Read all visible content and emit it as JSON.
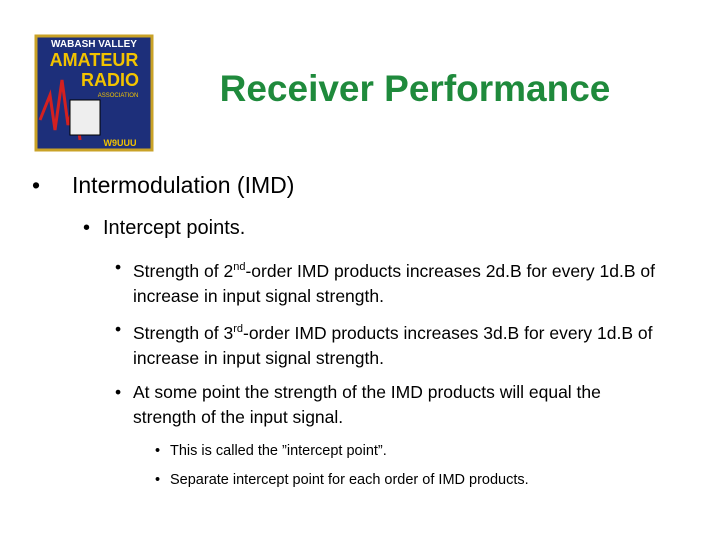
{
  "header": {
    "title": "Receiver Performance",
    "logo": {
      "lines": [
        "WABASH VALLEY",
        "AMATEUR",
        "RADIO",
        "ASSOCIATION"
      ],
      "callsign": "W9UUU"
    }
  },
  "bullets": [
    {
      "text": "Intermodulation (IMD)",
      "children": [
        {
          "text": "Intercept points.",
          "children": [
            {
              "parts": [
                "Strength of 2",
                "nd",
                "-order IMD products increases 2d.B for every 1d.B of increase in input signal strength."
              ]
            },
            {
              "parts": [
                "Strength of 3",
                "rd",
                "-order IMD products increases 3d.B for every 1d.B of increase in input signal strength."
              ]
            },
            {
              "text": "At some point the strength of the IMD products will equal the strength of the input signal.",
              "children": [
                {
                  "text": "This is called the ”intercept point”."
                },
                {
                  "text": "Separate intercept point for each order of IMD products."
                }
              ]
            }
          ]
        }
      ]
    }
  ]
}
